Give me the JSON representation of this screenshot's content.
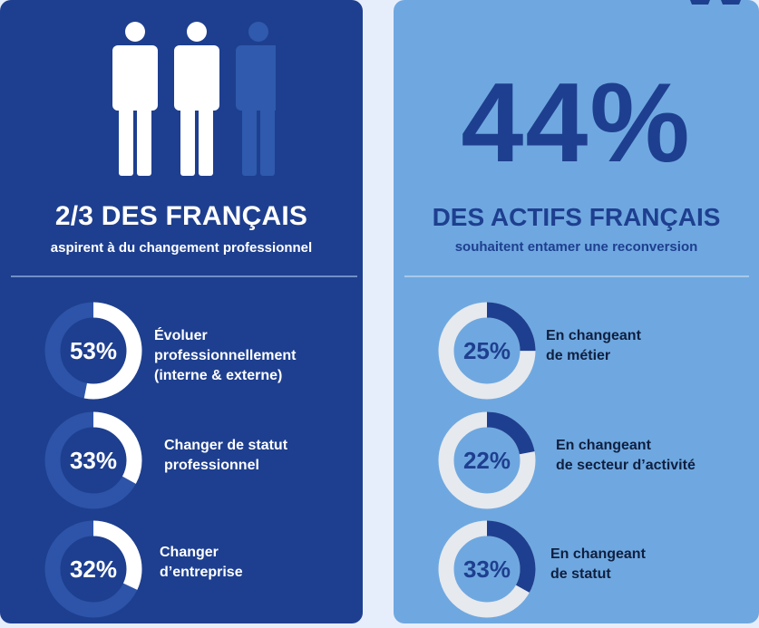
{
  "left_panel": {
    "title": "2/3 DES FRANÇAIS",
    "subtitle": "aspirent à du changement professionnel",
    "people_filled": 2,
    "people_total": 3,
    "stats": [
      {
        "percent_label": "53%",
        "value": 53,
        "lines": [
          "Évoluer",
          "professionnellement",
          "(interne & externe)"
        ]
      },
      {
        "percent_label": "33%",
        "value": 33,
        "lines": [
          "Changer de statut",
          "professionnel"
        ]
      },
      {
        "percent_label": "32%",
        "value": 32,
        "lines": [
          "Changer",
          "d’entreprise"
        ]
      }
    ]
  },
  "right_panel": {
    "big_percent": "44%",
    "title": "DES ACTIFS FRANÇAIS",
    "subtitle": "souhaitent entamer une reconversion",
    "stats": [
      {
        "percent_label": "25%",
        "value": 25,
        "lines": [
          "En changeant",
          "de métier"
        ]
      },
      {
        "percent_label": "22%",
        "value": 22,
        "lines": [
          "En changeant",
          "de secteur d’activité"
        ]
      },
      {
        "percent_label": "33%",
        "value": 33,
        "lines": [
          "En changeant",
          "de statut"
        ]
      }
    ]
  },
  "colors": {
    "dark_blue": "#1e3f8f",
    "light_blue": "#6fa8e0",
    "person_filled": "#ffffff",
    "person_empty": "#2f5aad",
    "left_track": "#2d54a8",
    "right_track": "#e6e9ee"
  }
}
